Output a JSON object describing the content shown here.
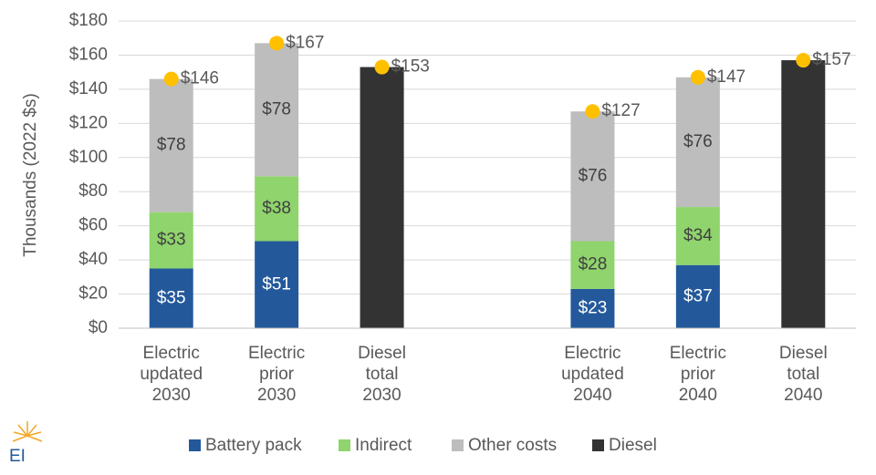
{
  "chart_data": {
    "type": "stacked_bar",
    "y_label": "Thousands (2022 $s)",
    "categories": [
      "Electric\nupdated\n2030",
      "Electric\nprior\n2030",
      "Diesel\ntotal\n2030",
      null,
      "Electric\nupdated\n2040",
      "Electric\nprior\n2040",
      "Diesel\ntotal\n2040"
    ],
    "series": [
      {
        "name": "Battery pack",
        "color": "#23599b",
        "label_color": "#ffffff",
        "values": [
          35,
          51,
          null,
          null,
          23,
          37,
          null
        ],
        "value_labels": [
          "$35",
          "$51",
          null,
          null,
          "$23",
          "$37",
          null
        ]
      },
      {
        "name": "Indirect",
        "color": "#8fd46c",
        "label_color": "#404040",
        "values": [
          33,
          38,
          null,
          null,
          28,
          34,
          null
        ],
        "value_labels": [
          "$33",
          "$38",
          null,
          null,
          "$28",
          "$34",
          null
        ]
      },
      {
        "name": "Other costs",
        "color": "#bdbdbd",
        "label_color": "#404040",
        "values": [
          78,
          78,
          null,
          null,
          76,
          76,
          null
        ],
        "value_labels": [
          "$78",
          "$78",
          null,
          null,
          "$76",
          "$76",
          null
        ]
      },
      {
        "name": "Diesel",
        "color": "#333333",
        "label_color": "#404040",
        "values": [
          null,
          null,
          153,
          null,
          null,
          null,
          157
        ],
        "value_labels": [
          null,
          null,
          null,
          null,
          null,
          null,
          null
        ]
      }
    ],
    "totals": {
      "color": "#ffc000",
      "values": [
        146,
        167,
        153,
        null,
        127,
        147,
        157
      ],
      "value_labels": [
        "$146",
        "$167",
        "$153",
        null,
        "$127",
        "$147",
        "$157"
      ]
    },
    "ylim": [
      0,
      180
    ],
    "yticks": [
      {
        "value": 0,
        "label": "$0"
      },
      {
        "value": 20,
        "label": "$20"
      },
      {
        "value": 40,
        "label": "$40"
      },
      {
        "value": 60,
        "label": "$60"
      },
      {
        "value": 80,
        "label": "$80"
      },
      {
        "value": 100,
        "label": "$100"
      },
      {
        "value": 120,
        "label": "$120"
      },
      {
        "value": 140,
        "label": "$140"
      },
      {
        "value": 160,
        "label": "$160"
      },
      {
        "value": 180,
        "label": "$180"
      }
    ],
    "grid": true,
    "legend": "bottom",
    "logo_text": "EI"
  }
}
